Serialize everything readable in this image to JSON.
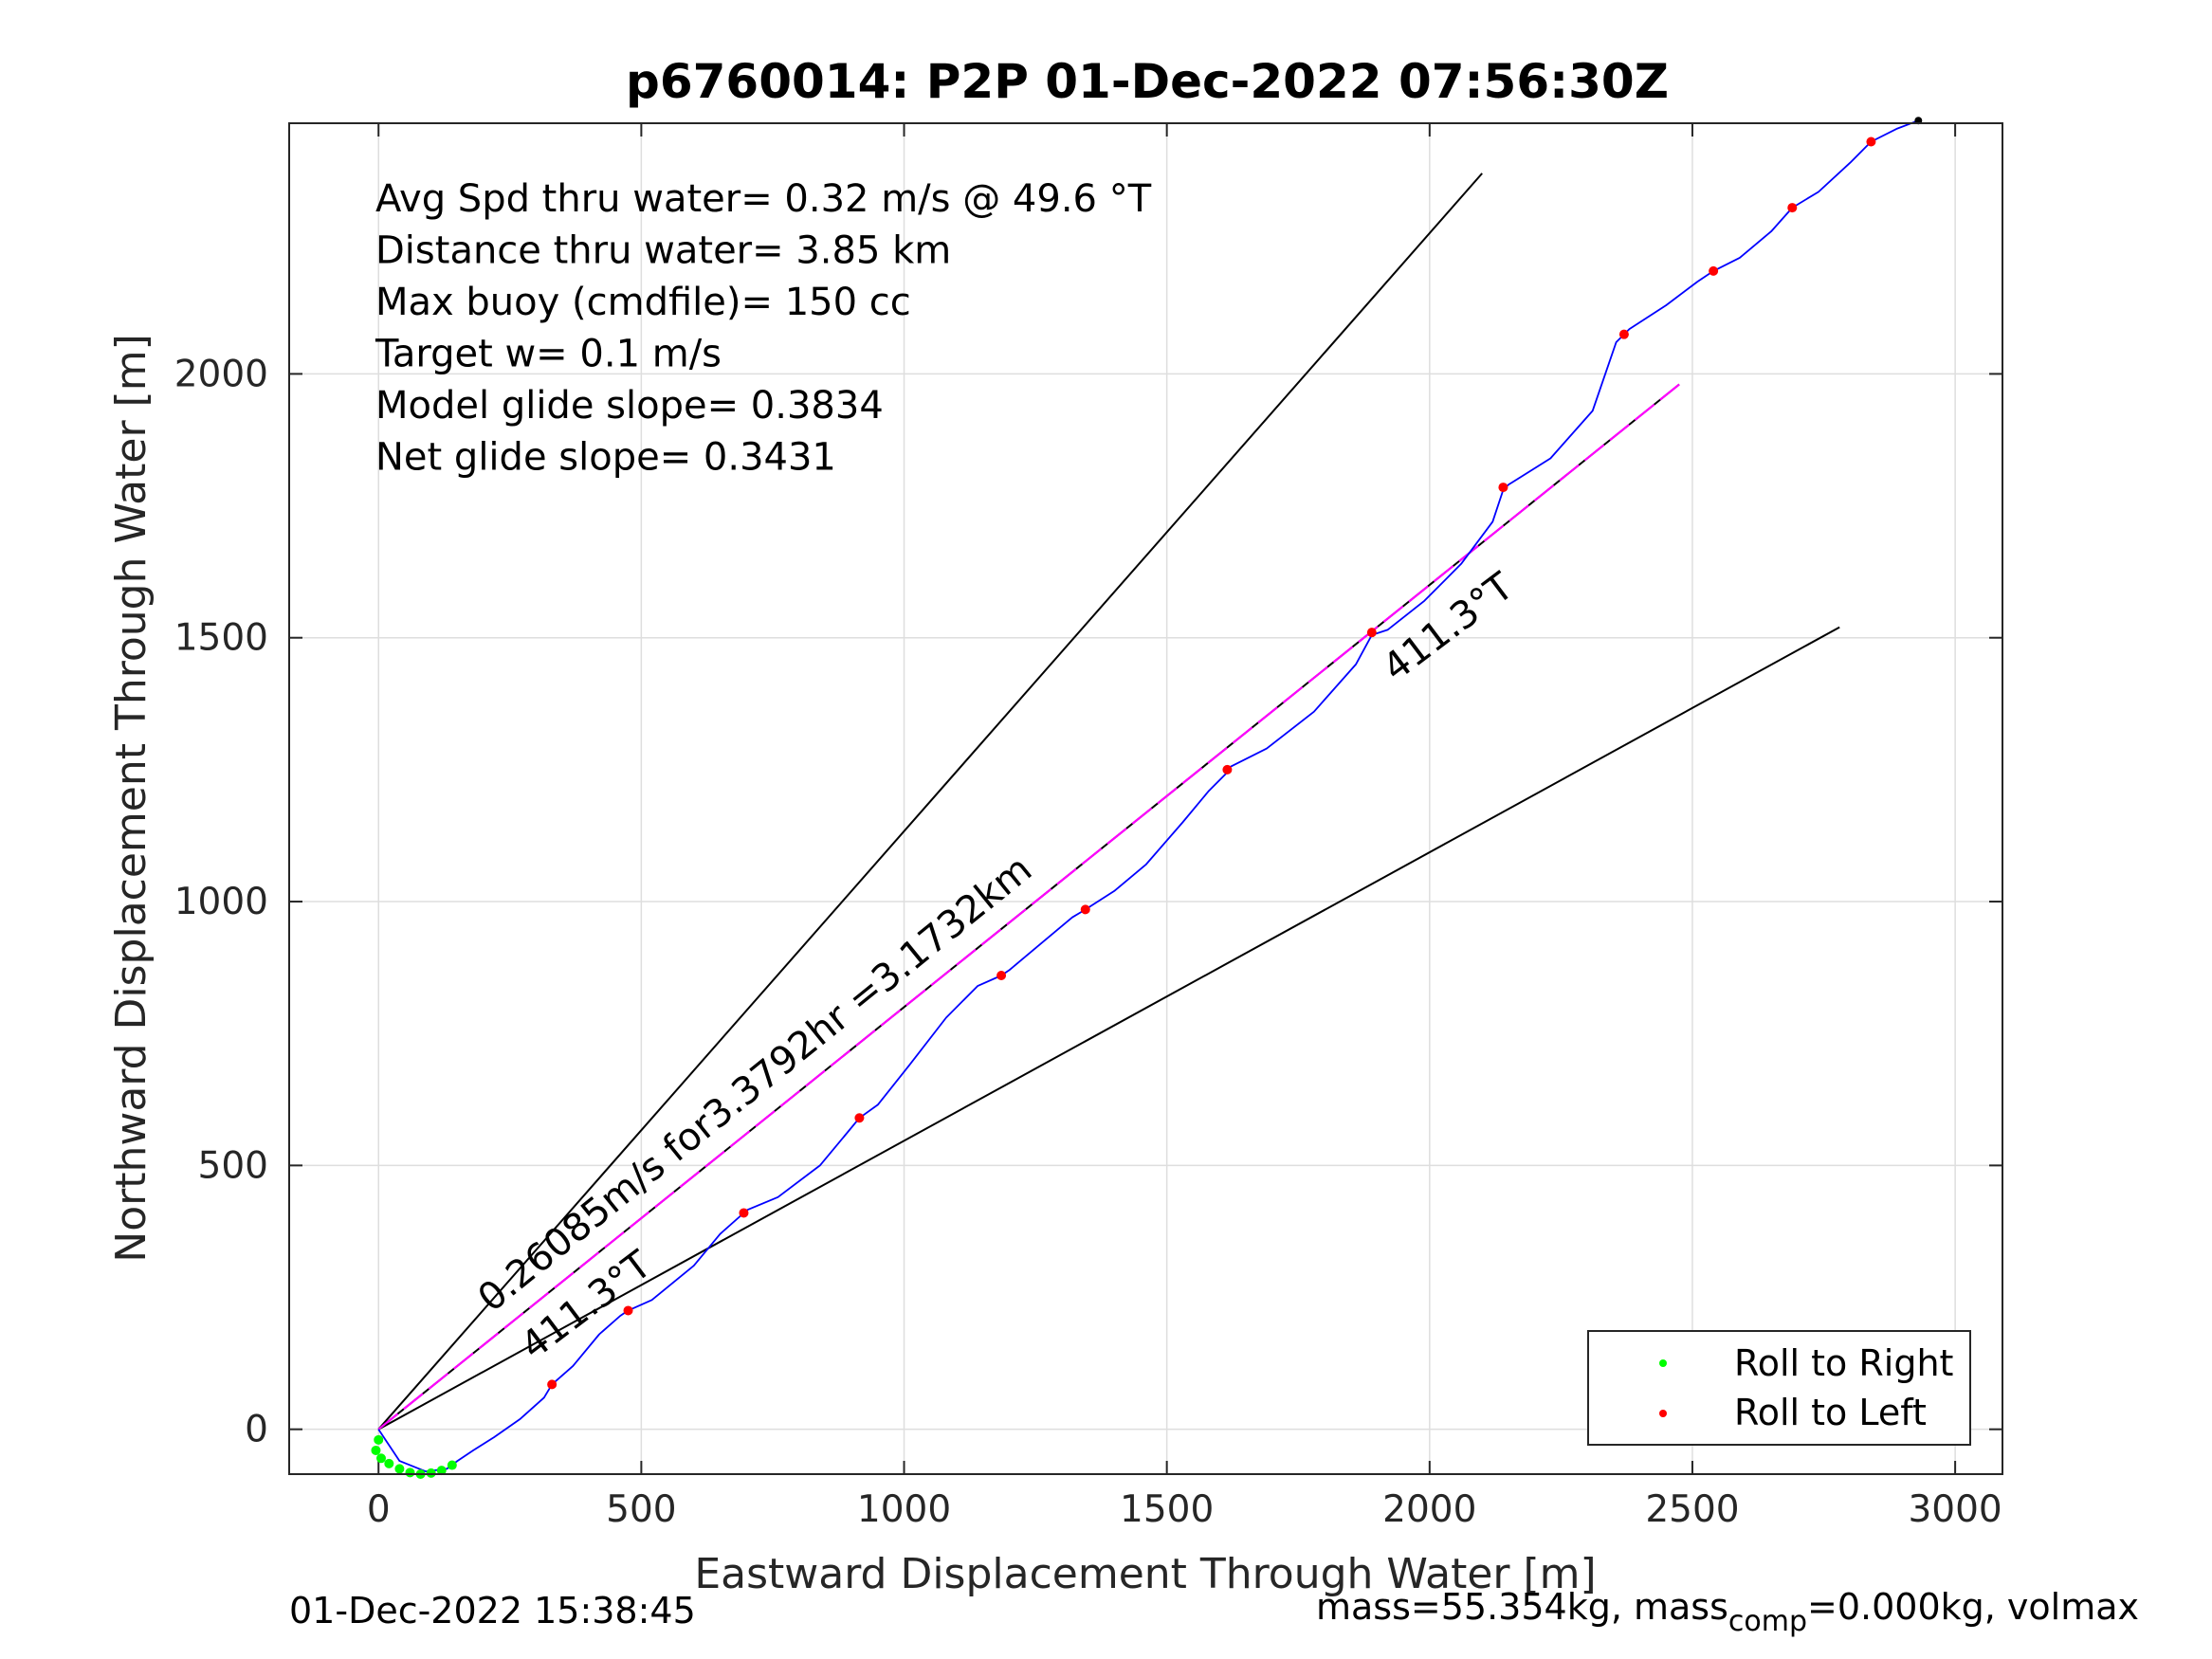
{
  "chart_data": {
    "type": "line",
    "title": "p6760014: P2P 01-Dec-2022 07:56:30Z",
    "xlabel": "Eastward Displacement Through Water [m]",
    "ylabel": "Northward Displacement Through Water [m]",
    "xlim": [
      -170,
      3090
    ],
    "ylim": [
      -85,
      2475
    ],
    "xticks": [
      0,
      500,
      1000,
      1500,
      2000,
      2500,
      3000
    ],
    "yticks": [
      0,
      500,
      1000,
      1500,
      2000
    ],
    "xtick_labels": [
      "0",
      "500",
      "1000",
      "1500",
      "2000",
      "2500",
      "3000"
    ],
    "ytick_labels": [
      "0",
      "500",
      "1000",
      "1500",
      "2000"
    ],
    "grid": true,
    "legend_position": "bottom-right",
    "info_lines": [
      "Avg Spd thru water=  0.32 m/s @  49.6 °T",
      "Distance thru water=  3.85 km",
      "Max buoy (cmdfile)= 150 cc",
      "Target w= 0.1 m/s",
      "Model glide slope= 0.3834",
      "Net glide slope= 0.3431"
    ],
    "annotations": {
      "upper_segment": "0.26085m/s for3.3792hr =3.1732km",
      "lower_bearing": "411.3°T",
      "upper_bearing": "411.3°T"
    },
    "series": [
      {
        "name": "Track",
        "color": "#0000ff",
        "x": [
          0,
          40,
          90,
          130,
          150,
          180,
          220,
          270,
          315,
          330,
          370,
          420,
          460,
          475,
          520,
          600,
          650,
          695,
          700,
          760,
          840,
          890,
          915,
          950,
          1010,
          1080,
          1140,
          1185,
          1200,
          1260,
          1320,
          1345,
          1400,
          1460,
          1530,
          1580,
          1615,
          1620,
          1690,
          1780,
          1860,
          1890,
          1920,
          1990,
          2060,
          2120,
          2140,
          2150,
          2230,
          2310,
          2355,
          2370,
          2380,
          2450,
          2510,
          2540,
          2590,
          2650,
          2690,
          2740,
          2800,
          2840,
          2890,
          2930
        ],
        "y": [
          0,
          -60,
          -80,
          -75,
          -60,
          -40,
          -15,
          20,
          60,
          85,
          120,
          180,
          215,
          225,
          245,
          310,
          370,
          410,
          415,
          440,
          500,
          560,
          590,
          615,
          690,
          780,
          840,
          860,
          870,
          920,
          970,
          985,
          1020,
          1070,
          1150,
          1210,
          1245,
          1255,
          1290,
          1360,
          1450,
          1505,
          1515,
          1570,
          1640,
          1720,
          1780,
          1790,
          1840,
          1930,
          2060,
          2075,
          2085,
          2130,
          2175,
          2195,
          2220,
          2270,
          2315,
          2345,
          2400,
          2440,
          2465,
          2480
        ]
      },
      {
        "name": "Net glide path",
        "color": "#ff00ff",
        "x": [
          0,
          2475
        ],
        "y": [
          0,
          1980
        ]
      },
      {
        "name": "Upper bound",
        "color": "#000000",
        "x": [
          0,
          2100
        ],
        "y": [
          0,
          2380
        ]
      },
      {
        "name": "Heading line",
        "color": "#000000",
        "x": [
          0,
          2475
        ],
        "y": [
          0,
          1980
        ]
      },
      {
        "name": "Lower bound",
        "color": "#000000",
        "x": [
          0,
          2780
        ],
        "y": [
          0,
          1520
        ]
      }
    ],
    "roll_to_right": {
      "name": "Roll to Right",
      "color": "#00ff00",
      "x": [
        0,
        -5,
        5,
        20,
        40,
        60,
        80,
        100,
        120,
        140
      ],
      "y": [
        -20,
        -40,
        -55,
        -65,
        -75,
        -82,
        -85,
        -83,
        -78,
        -68
      ]
    },
    "roll_to_left": {
      "name": "Roll to Left",
      "color": "#ff0000",
      "x": [
        330,
        475,
        695,
        915,
        1185,
        1345,
        1615,
        1890,
        2140,
        2370,
        2540,
        2690,
        2840
      ],
      "y": [
        85,
        225,
        410,
        590,
        860,
        985,
        1250,
        1510,
        1785,
        2075,
        2195,
        2315,
        2440
      ]
    },
    "endpoint": {
      "x": 2930,
      "y": 2480
    }
  },
  "footer": {
    "timestamp": "01-Dec-2022 15:38:45",
    "mass_prefix": "mass=55.354kg, mass",
    "mass_sub": "comp",
    "mass_suffix": "=0.000kg, volmax"
  }
}
